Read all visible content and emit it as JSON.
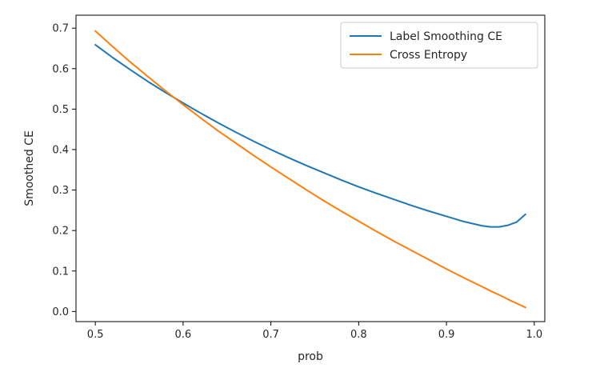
{
  "chart_data": {
    "type": "line",
    "xlabel": "prob",
    "ylabel": "Smoothed CE",
    "xlim": [
      0.478,
      1.012
    ],
    "ylim": [
      -0.025,
      0.732
    ],
    "xticks": [
      0.5,
      0.6,
      0.7,
      0.8,
      0.9,
      1.0
    ],
    "xtick_labels": [
      "0.5",
      "0.6",
      "0.7",
      "0.8",
      "0.9",
      "1.0"
    ],
    "yticks": [
      0.0,
      0.1,
      0.2,
      0.3,
      0.4,
      0.5,
      0.6,
      0.7
    ],
    "ytick_labels": [
      "0.0",
      "0.1",
      "0.2",
      "0.3",
      "0.4",
      "0.5",
      "0.6",
      "0.7"
    ],
    "grid": false,
    "legend_position": "top-right",
    "series": [
      {
        "name": "Label Smoothing CE",
        "color": "#1f77b4",
        "x": [
          0.5,
          0.52,
          0.54,
          0.56,
          0.58,
          0.6,
          0.62,
          0.64,
          0.66,
          0.68,
          0.7,
          0.72,
          0.74,
          0.76,
          0.78,
          0.8,
          0.82,
          0.84,
          0.86,
          0.88,
          0.9,
          0.92,
          0.94,
          0.95,
          0.96,
          0.97,
          0.98,
          0.99
        ],
        "y": [
          0.659,
          0.627,
          0.597,
          0.568,
          0.541,
          0.515,
          0.49,
          0.466,
          0.443,
          0.421,
          0.4,
          0.38,
          0.361,
          0.343,
          0.325,
          0.308,
          0.292,
          0.277,
          0.262,
          0.248,
          0.235,
          0.222,
          0.212,
          0.209,
          0.209,
          0.213,
          0.221,
          0.24
        ]
      },
      {
        "name": "Cross Entropy",
        "color": "#ff7f0e",
        "x": [
          0.5,
          0.52,
          0.54,
          0.56,
          0.58,
          0.6,
          0.62,
          0.64,
          0.66,
          0.68,
          0.7,
          0.72,
          0.74,
          0.76,
          0.78,
          0.8,
          0.82,
          0.84,
          0.86,
          0.88,
          0.9,
          0.92,
          0.94,
          0.95,
          0.96,
          0.97,
          0.98,
          0.99
        ],
        "y": [
          0.693,
          0.654,
          0.616,
          0.58,
          0.545,
          0.511,
          0.478,
          0.446,
          0.416,
          0.386,
          0.357,
          0.329,
          0.301,
          0.274,
          0.248,
          0.223,
          0.198,
          0.174,
          0.151,
          0.128,
          0.105,
          0.083,
          0.062,
          0.051,
          0.041,
          0.03,
          0.02,
          0.01
        ]
      }
    ]
  }
}
